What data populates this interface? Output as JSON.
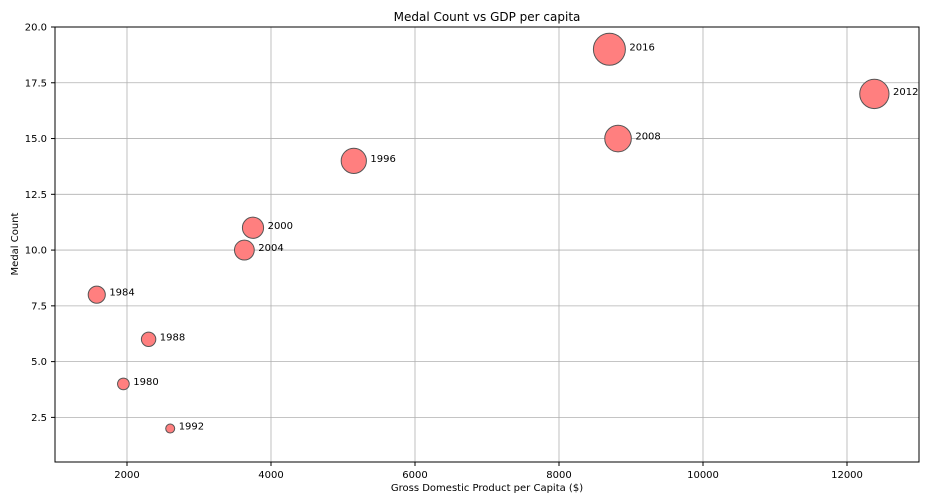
{
  "chart_data": {
    "type": "scatter",
    "title": "Medal Count vs GDP per capita",
    "xlabel": "Gross Domestic Product per Capita ($)",
    "ylabel": "Medal Count",
    "xlim": [
      1000,
      13000
    ],
    "ylim": [
      0.5,
      20.0
    ],
    "xticks": [
      2000,
      4000,
      6000,
      8000,
      10000,
      12000
    ],
    "yticks": [
      2.5,
      5.0,
      7.5,
      10.0,
      12.5,
      15.0,
      17.5,
      20.0
    ],
    "ytick_labels": [
      "2.5",
      "5.0",
      "7.5",
      "10.0",
      "12.5",
      "15.0",
      "17.5",
      "20.0"
    ],
    "grid": true,
    "marker_color": "#ff7f7f",
    "marker_edge_color": "#555555",
    "points": [
      {
        "label": "1980",
        "x": 1950,
        "y": 4
      },
      {
        "label": "1984",
        "x": 1580,
        "y": 8
      },
      {
        "label": "1988",
        "x": 2300,
        "y": 6
      },
      {
        "label": "1992",
        "x": 2600,
        "y": 2
      },
      {
        "label": "1996",
        "x": 5150,
        "y": 14
      },
      {
        "label": "2000",
        "x": 3750,
        "y": 11
      },
      {
        "label": "2004",
        "x": 3630,
        "y": 10
      },
      {
        "label": "2008",
        "x": 8820,
        "y": 15
      },
      {
        "label": "2012",
        "x": 12380,
        "y": 17
      },
      {
        "label": "2016",
        "x": 8700,
        "y": 19
      }
    ]
  }
}
